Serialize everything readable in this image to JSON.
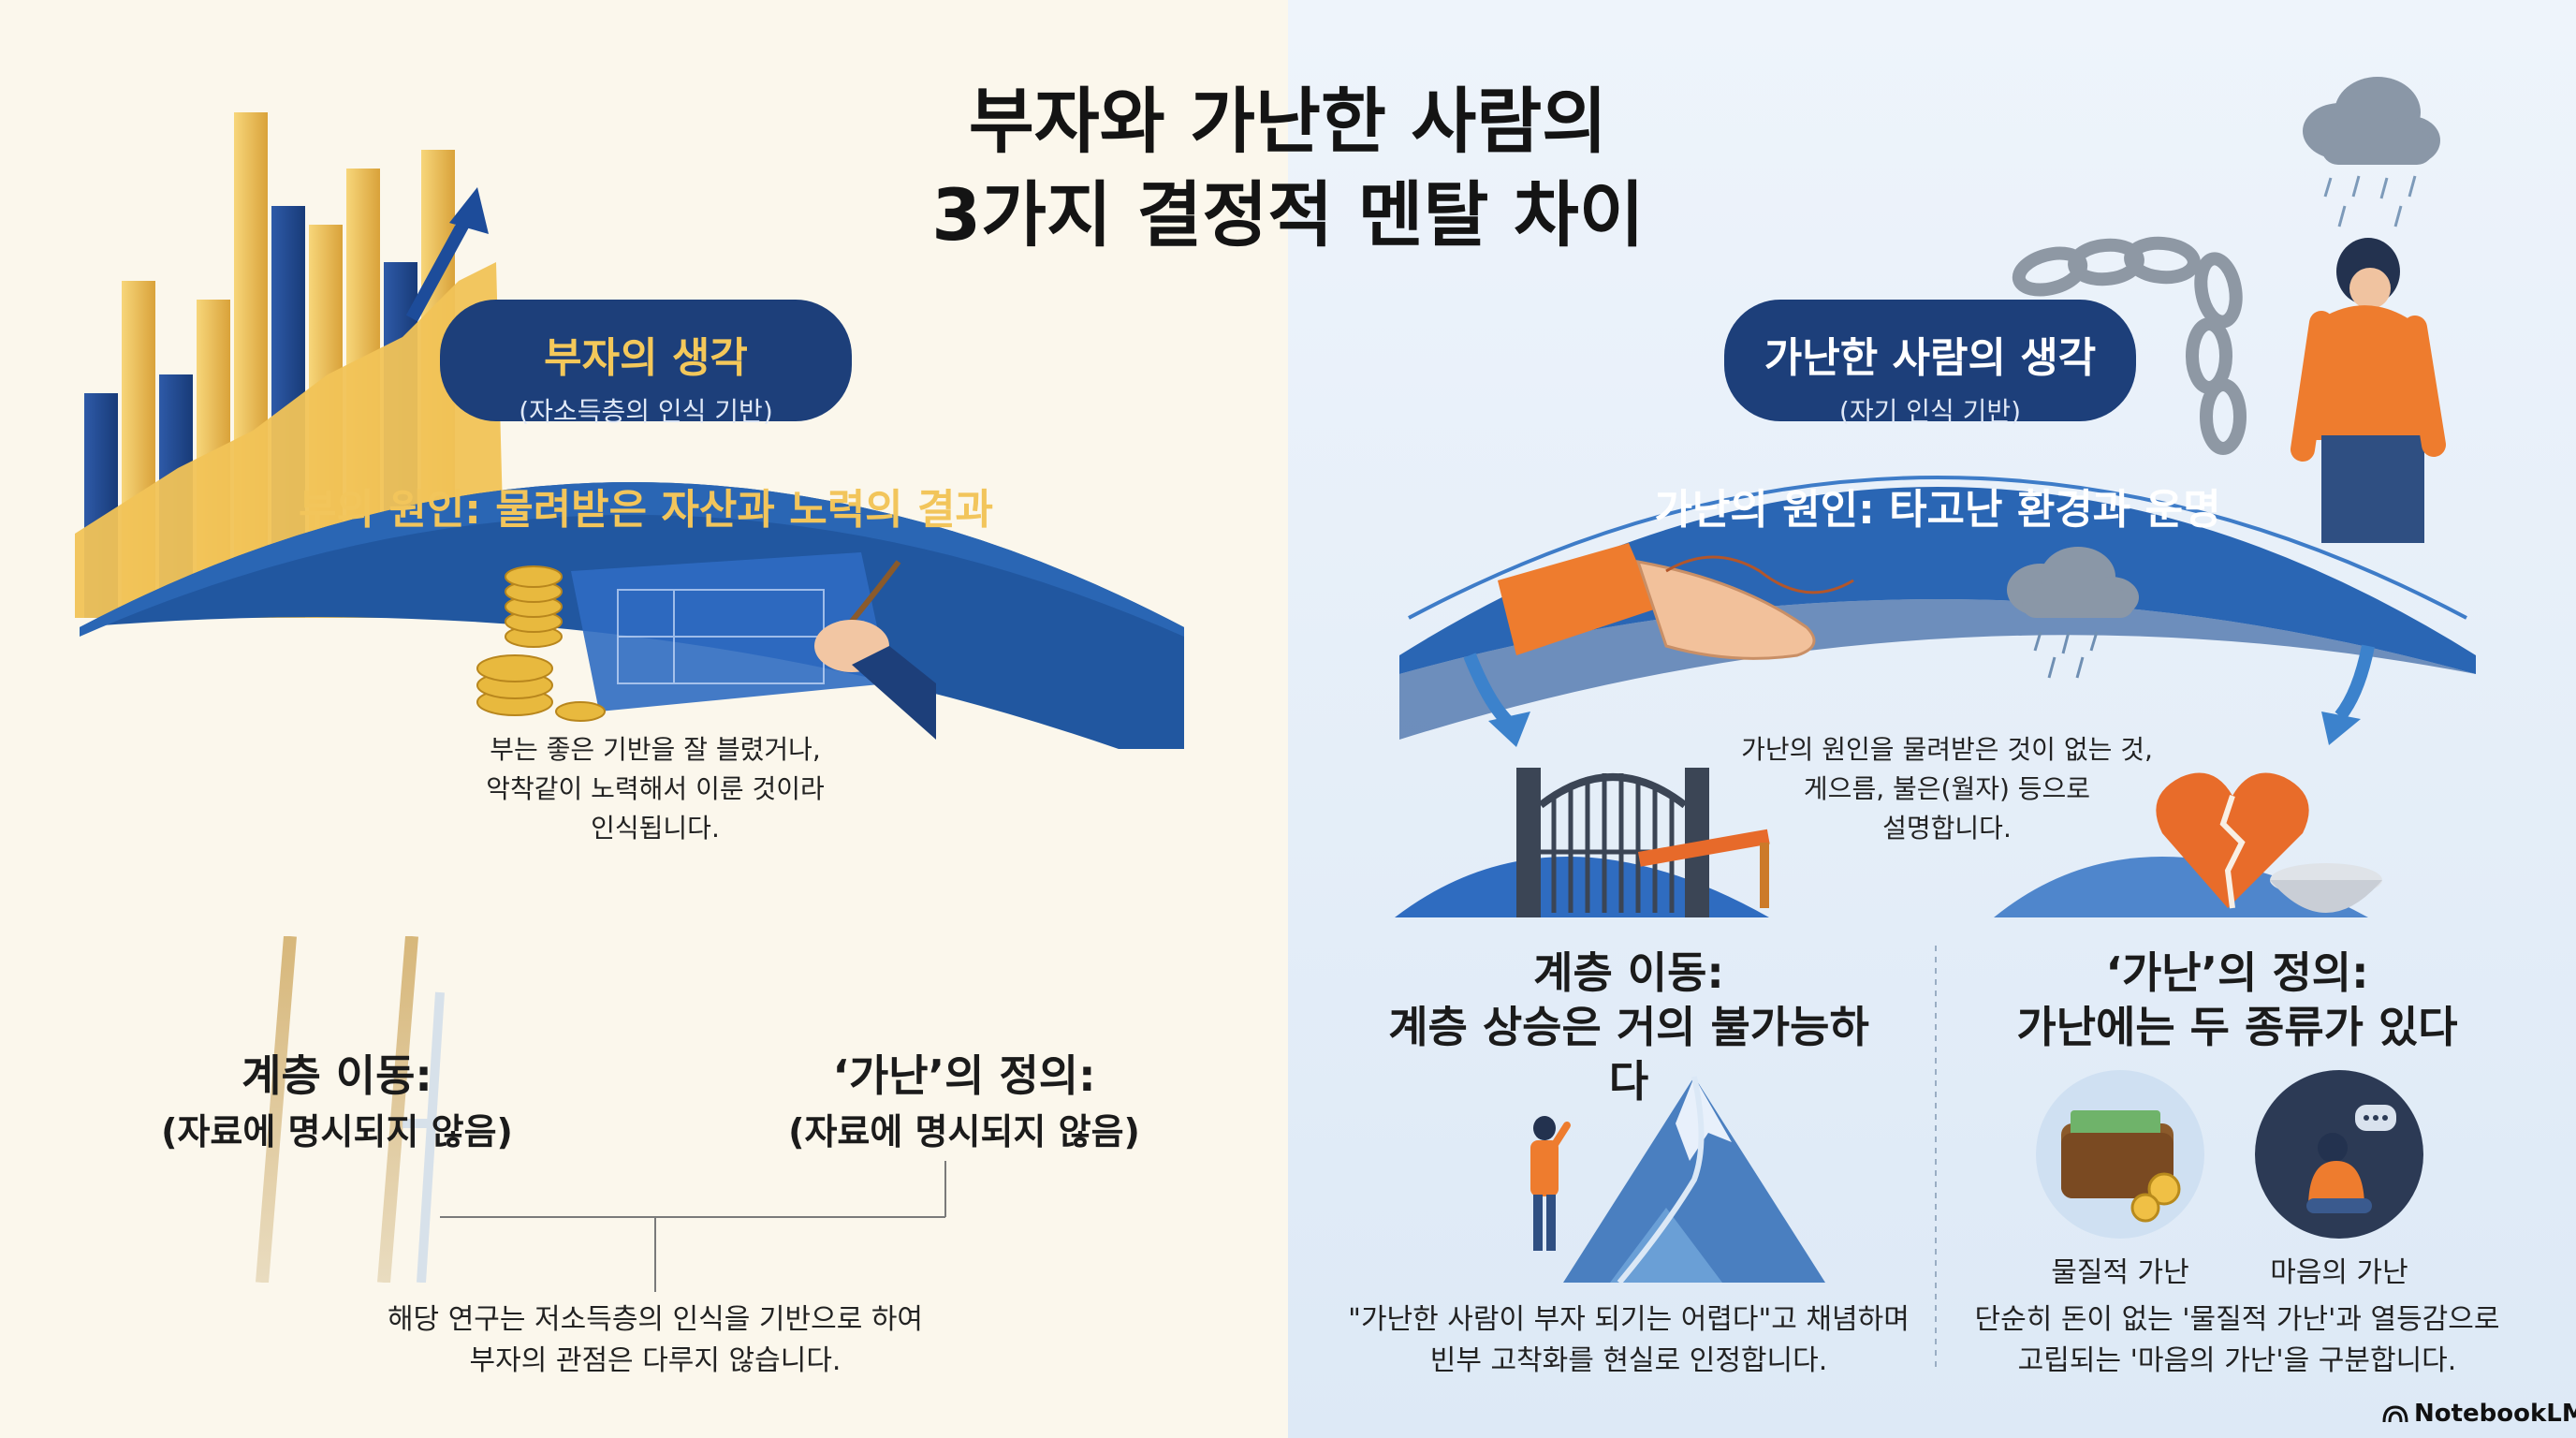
{
  "title": {
    "line1": "부자와 가난한 사람의",
    "line2": "3가지 결정적 멘탈 차이"
  },
  "left": {
    "pill_title": "부자의 생각",
    "pill_sub": "(자소득층의 인식 기반)",
    "arch_heading": "부의 원인: 물려받은 자산과 노력의 결과",
    "arch_text": [
      "부는 좋은 기반을 잘 블렸거나,",
      "악착같이 노력해서 이룬 것이라",
      "인식됩니다."
    ],
    "mobility_title": "계층 이동:",
    "mobility_sub": "(자료에 명시되지 않음)",
    "poverty_title": "‘가난’의 정의:",
    "poverty_sub": "(자료에 명시되지 않음)",
    "note": [
      "해당 연구는 저소득층의 인식을 기반으로 하여",
      "부자의 관점은 다루지 않습니다."
    ]
  },
  "right": {
    "pill_title": "가난한 사람의 생각",
    "pill_sub": "(자기 인식 기반)",
    "arch_heading": "가난의 원인: 타고난 환경과 운명",
    "arch_text": [
      "가난의 원인을 물려받은 것이 없는 것,",
      "게으름, 불은(월자) 등으로",
      "설명합니다."
    ],
    "mobility_title": [
      "계층 이동:",
      "계층 상승은 거의 불가능하다"
    ],
    "mobility_caption": [
      "\"가난한 사람이 부자 되기는 어렵다\"고 채념하며",
      "빈부 고착화를 현실로 인정합니다."
    ],
    "poverty_title": [
      "‘가난’의 정의:",
      "가난에는 두 종류가 있다"
    ],
    "material_label": "물질적 가난",
    "mind_label": "마음의 가난",
    "poverty_caption": [
      "단순히 돈이 없는 '물질적 가난'과 열등감으로",
      "고립되는 '마음의 가난'을 구분합니다."
    ]
  },
  "brand": "NotebookLM",
  "colors": {
    "navy": "#1d3f7a",
    "arch_blue": "#2358a0",
    "gold": "#f2c55b",
    "orange": "#ec7a2c",
    "left_bg": "#fbf7ec",
    "right_bg": "#e6eff8"
  }
}
